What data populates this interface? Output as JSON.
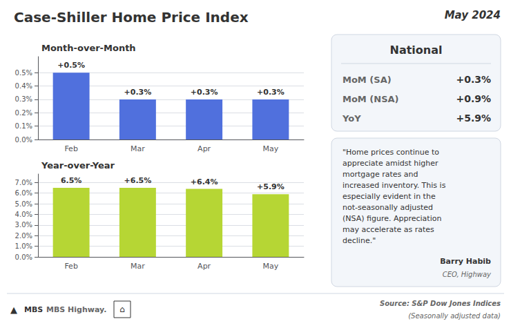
{
  "title": "Case-Shiller Home Price Index",
  "subtitle": "May 2024",
  "chart_data": [
    {
      "type": "bar",
      "title": "Month-over-Month",
      "categories": [
        "Feb",
        "Mar",
        "Apr",
        "May"
      ],
      "values": [
        0.5,
        0.3,
        0.3,
        0.3
      ],
      "value_labels": [
        "+0.5%",
        "+0.3%",
        "+0.3%",
        "+0.3%"
      ],
      "data_labels": true,
      "ylim": [
        0,
        0.62
      ],
      "yticks": [
        {
          "value": 0.0,
          "label": "0.0%"
        },
        {
          "value": 0.1,
          "label": "0.1%"
        },
        {
          "value": 0.2,
          "label": "0.2%"
        },
        {
          "value": 0.3,
          "label": "0.3%"
        },
        {
          "value": 0.4,
          "label": "0.4%"
        },
        {
          "value": 0.5,
          "label": "0.5%"
        }
      ],
      "grid": true
    },
    {
      "type": "bar",
      "title": "Year-over-Year",
      "categories": [
        "Feb",
        "Mar",
        "Apr",
        "May"
      ],
      "values": [
        6.5,
        6.5,
        6.4,
        5.9
      ],
      "value_labels": [
        "6.5%",
        "+6.5%",
        "+6.4%",
        "+5.9%"
      ],
      "data_labels": true,
      "ylim": [
        0,
        7.8
      ],
      "yticks": [
        {
          "value": 0.0,
          "label": "0.0%"
        },
        {
          "value": 1.0,
          "label": "1.0%"
        },
        {
          "value": 2.0,
          "label": "2.0%"
        },
        {
          "value": 3.0,
          "label": "3.0%"
        },
        {
          "value": 4.0,
          "label": "4.0%"
        },
        {
          "value": 5.0,
          "label": "5.0%"
        },
        {
          "value": 6.0,
          "label": "6.0%"
        },
        {
          "value": 7.0,
          "label": "7.0%"
        }
      ],
      "grid": true
    }
  ],
  "national": {
    "title": "National",
    "items": [
      {
        "label": "MoM (SA)",
        "value": "+0.3%"
      },
      {
        "label": "MoM (NSA)",
        "value": "+0.9%"
      },
      {
        "label": "YoY",
        "value": "+5.9%"
      }
    ]
  },
  "quote": {
    "text": "\"Home prices continue to\nappreciate amidst higher\nmortgage rates and\nincreased inventory. This is\nespecially evident in the\nnot-seasonally adjusted\n(NSA) figure. Appreciation\nmay accelerate as rates\ndecline.\"",
    "author": "Barry Habib",
    "author_title": "CEO, Highway"
  },
  "footer": {
    "logo": [
      "▲",
      "MBS",
      "MBS Highway."
    ],
    "badge": "⌂",
    "source": "Source: S&P Dow Jones Indices",
    "source_note": "(Seasonally adjusted data)"
  }
}
